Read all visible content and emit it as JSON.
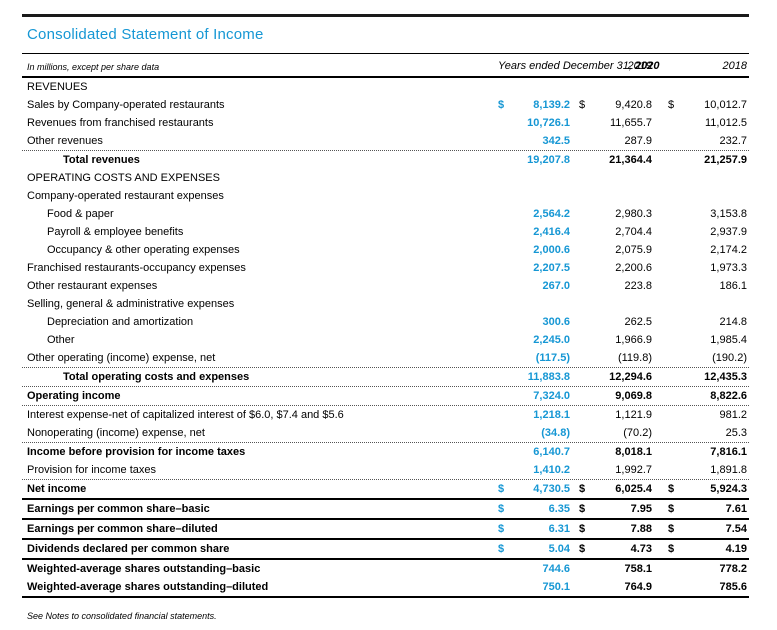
{
  "title": "Consolidated Statement of Income",
  "colors": {
    "accent_blue": "#1697d4"
  },
  "table": {
    "caption_left": "In millions, except per share data",
    "period_label": "Years ended December 31, ",
    "year_2020": "2020",
    "year_2019": "2019",
    "year_2018": "2018",
    "rows": [
      {
        "label": "REVENUES",
        "section": true,
        "values": [
          "",
          "",
          ""
        ]
      },
      {
        "label": "Sales by Company-operated restaurants",
        "dollar": true,
        "values": [
          "8,139.2",
          "9,420.8",
          "10,012.7"
        ]
      },
      {
        "label": "Revenues from franchised restaurants",
        "values": [
          "10,726.1",
          "11,655.7",
          "11,012.5"
        ]
      },
      {
        "label": "Other revenues",
        "values": [
          "342.5",
          "287.9",
          "232.7"
        ]
      },
      {
        "label": "Total revenues",
        "bold": true,
        "indent": 2,
        "top": "dotted",
        "values": [
          "19,207.8",
          "21,364.4",
          "21,257.9"
        ]
      },
      {
        "label": "OPERATING COSTS AND EXPENSES",
        "section": true,
        "values": [
          "",
          "",
          ""
        ]
      },
      {
        "label": "Company-operated restaurant expenses",
        "values": [
          "",
          "",
          ""
        ]
      },
      {
        "label": "Food & paper",
        "indent": 1,
        "values": [
          "2,564.2",
          "2,980.3",
          "3,153.8"
        ]
      },
      {
        "label": "Payroll & employee benefits",
        "indent": 1,
        "values": [
          "2,416.4",
          "2,704.4",
          "2,937.9"
        ]
      },
      {
        "label": "Occupancy & other operating expenses",
        "indent": 1,
        "values": [
          "2,000.6",
          "2,075.9",
          "2,174.2"
        ]
      },
      {
        "label": "Franchised restaurants-occupancy expenses",
        "values": [
          "2,207.5",
          "2,200.6",
          "1,973.3"
        ]
      },
      {
        "label": "Other restaurant expenses",
        "values": [
          "267.0",
          "223.8",
          "186.1"
        ]
      },
      {
        "label": "Selling, general & administrative expenses",
        "values": [
          "",
          "",
          ""
        ]
      },
      {
        "label": "Depreciation and amortization",
        "indent": 1,
        "values": [
          "300.6",
          "262.5",
          "214.8"
        ]
      },
      {
        "label": "Other",
        "indent": 1,
        "values": [
          "2,245.0",
          "1,966.9",
          "1,985.4"
        ]
      },
      {
        "label": "Other operating (income) expense, net",
        "values": [
          "(117.5)",
          "(119.8)",
          "(190.2)"
        ]
      },
      {
        "label": "Total operating costs and expenses",
        "bold": true,
        "indent": 2,
        "top": "dotted",
        "values": [
          "11,883.8",
          "12,294.6",
          "12,435.3"
        ]
      },
      {
        "label": "Operating income",
        "bold": true,
        "top": "dotted",
        "values": [
          "7,324.0",
          "9,069.8",
          "8,822.6"
        ]
      },
      {
        "label": "Interest expense-net of capitalized interest of $6.0, $7.4 and $5.6",
        "top": "dotted",
        "values": [
          "1,218.1",
          "1,121.9",
          "981.2"
        ]
      },
      {
        "label": "Nonoperating (income) expense, net",
        "values": [
          "(34.8)",
          "(70.2)",
          "25.3"
        ]
      },
      {
        "label": "Income before provision for income taxes",
        "bold": true,
        "top": "dotted",
        "values": [
          "6,140.7",
          "8,018.1",
          "7,816.1"
        ]
      },
      {
        "label": "Provision for income taxes",
        "values": [
          "1,410.2",
          "1,992.7",
          "1,891.8"
        ]
      },
      {
        "label": "Net income",
        "bold": true,
        "dollar": true,
        "top": "dotted",
        "values": [
          "4,730.5",
          "6,025.4",
          "5,924.3"
        ]
      },
      {
        "label": "Earnings per common share–basic",
        "bold": true,
        "dollar": true,
        "top": "solid",
        "values": [
          "6.35",
          "7.95",
          "7.61"
        ]
      },
      {
        "label": "Earnings per common share–diluted",
        "bold": true,
        "dollar": true,
        "top": "solid",
        "values": [
          "6.31",
          "7.88",
          "7.54"
        ]
      },
      {
        "label": "Dividends declared per common share",
        "bold": true,
        "dollar": true,
        "top": "solid",
        "values": [
          "5.04",
          "4.73",
          "4.19"
        ]
      },
      {
        "label": "Weighted-average shares outstanding–basic",
        "bold": true,
        "top": "solid",
        "values": [
          "744.6",
          "758.1",
          "778.2"
        ]
      },
      {
        "label": "Weighted-average shares outstanding–diluted",
        "bold": true,
        "values": [
          "750.1",
          "764.9",
          "785.6"
        ]
      }
    ]
  },
  "footnote": "See Notes to consolidated financial statements."
}
